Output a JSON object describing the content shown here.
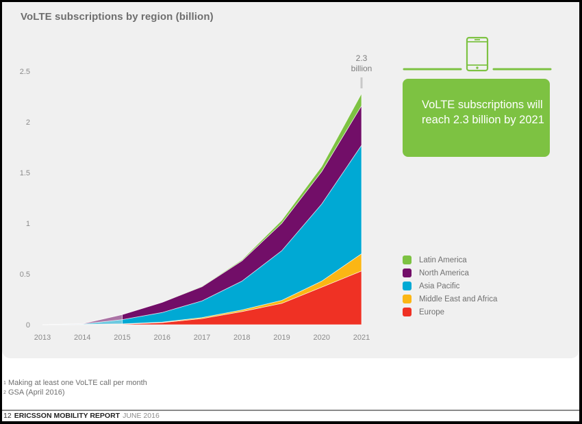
{
  "page": {
    "footnotes": [
      {
        "marker": "1",
        "text": "Making at least one VoLTE call per month"
      },
      {
        "marker": "2",
        "text": "GSA (April 2016)"
      }
    ],
    "footer": {
      "page_number": "12",
      "publication": "ERICSSON MOBILITY REPORT",
      "date": "JUNE 2016"
    }
  },
  "callout": {
    "icon": "smartphone-icon",
    "text": "VoLTE subscriptions will reach 2.3 billion by 2021"
  },
  "colors": {
    "Latin America": "#7dc242",
    "North America": "#720e68",
    "Asia Pacific": "#00a9d4",
    "Middle East and Africa": "#fbb614",
    "Europe": "#ef3124",
    "callout_bg": "#7dc242",
    "panel_bg": "#f0f0f0"
  },
  "chart_data": {
    "type": "area",
    "stacked": true,
    "title": "VoLTE subscriptions by region (billion)",
    "xlabel": "",
    "ylabel": "",
    "x": [
      2013,
      2014,
      2015,
      2016,
      2017,
      2018,
      2019,
      2020,
      2021
    ],
    "x_tick_labels": [
      "2013",
      "2014",
      "2015",
      "2016",
      "2017",
      "2018",
      "2019",
      "2020",
      "2021"
    ],
    "ylim": [
      0,
      2.5
    ],
    "y_ticks": [
      0,
      0.5,
      1,
      1.5,
      2,
      2.5
    ],
    "y_tick_labels": [
      "0",
      "0.5",
      "1",
      "1.5",
      "2",
      "2.5"
    ],
    "grid": false,
    "legend_position": "right",
    "series": [
      {
        "name": "Europe",
        "values": [
          0,
          0.002,
          0.005,
          0.02,
          0.06,
          0.13,
          0.21,
          0.37,
          0.53
        ]
      },
      {
        "name": "Middle East and Africa",
        "values": [
          0,
          0.001,
          0.003,
          0.005,
          0.01,
          0.015,
          0.03,
          0.06,
          0.17
        ]
      },
      {
        "name": "Asia Pacific",
        "values": [
          0,
          0.004,
          0.042,
          0.095,
          0.165,
          0.285,
          0.49,
          0.76,
          1.07
        ]
      },
      {
        "name": "North America",
        "values": [
          0,
          0.003,
          0.05,
          0.1,
          0.14,
          0.2,
          0.27,
          0.32,
          0.39
        ]
      },
      {
        "name": "Latin America",
        "values": [
          0,
          0,
          0,
          0,
          0.005,
          0.01,
          0.03,
          0.05,
          0.12
        ]
      }
    ],
    "legend_order": [
      "Latin America",
      "North America",
      "Asia Pacific",
      "Middle East and Africa",
      "Europe"
    ],
    "annotations": [
      {
        "x": 2021,
        "text_line1": "2.3",
        "text_line2": "billion",
        "value": 2.3
      }
    ],
    "forecast_from": 2016
  }
}
